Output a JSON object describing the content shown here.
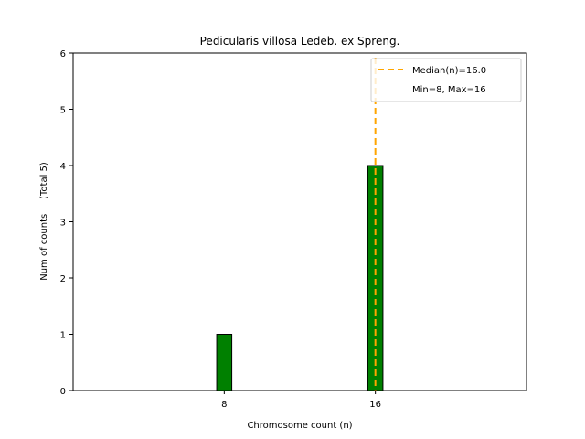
{
  "chart_data": {
    "type": "bar",
    "title": "Pedicularis villosa Ledeb. ex Spreng.",
    "xlabel": "Chromosome count (n)",
    "ylabel": "Num of counts     (Total 5)",
    "x": [
      8,
      16
    ],
    "values": [
      1,
      4
    ],
    "x_ticks": [
      8,
      16
    ],
    "y_ticks": [
      0,
      1,
      2,
      3,
      4,
      5,
      6
    ],
    "ylim": [
      0,
      6
    ],
    "xlim": [
      0,
      24
    ],
    "bar_color": "#008000",
    "bar_edge_color": "#000000",
    "median": 16.0,
    "median_color": "#ffa500",
    "grid": false,
    "legend": {
      "placement": "top-right",
      "entries": [
        {
          "label": "Median(n)=16.0",
          "style": "dashed-line"
        },
        {
          "label": "Min=8, Max=16",
          "style": "none"
        }
      ]
    }
  }
}
